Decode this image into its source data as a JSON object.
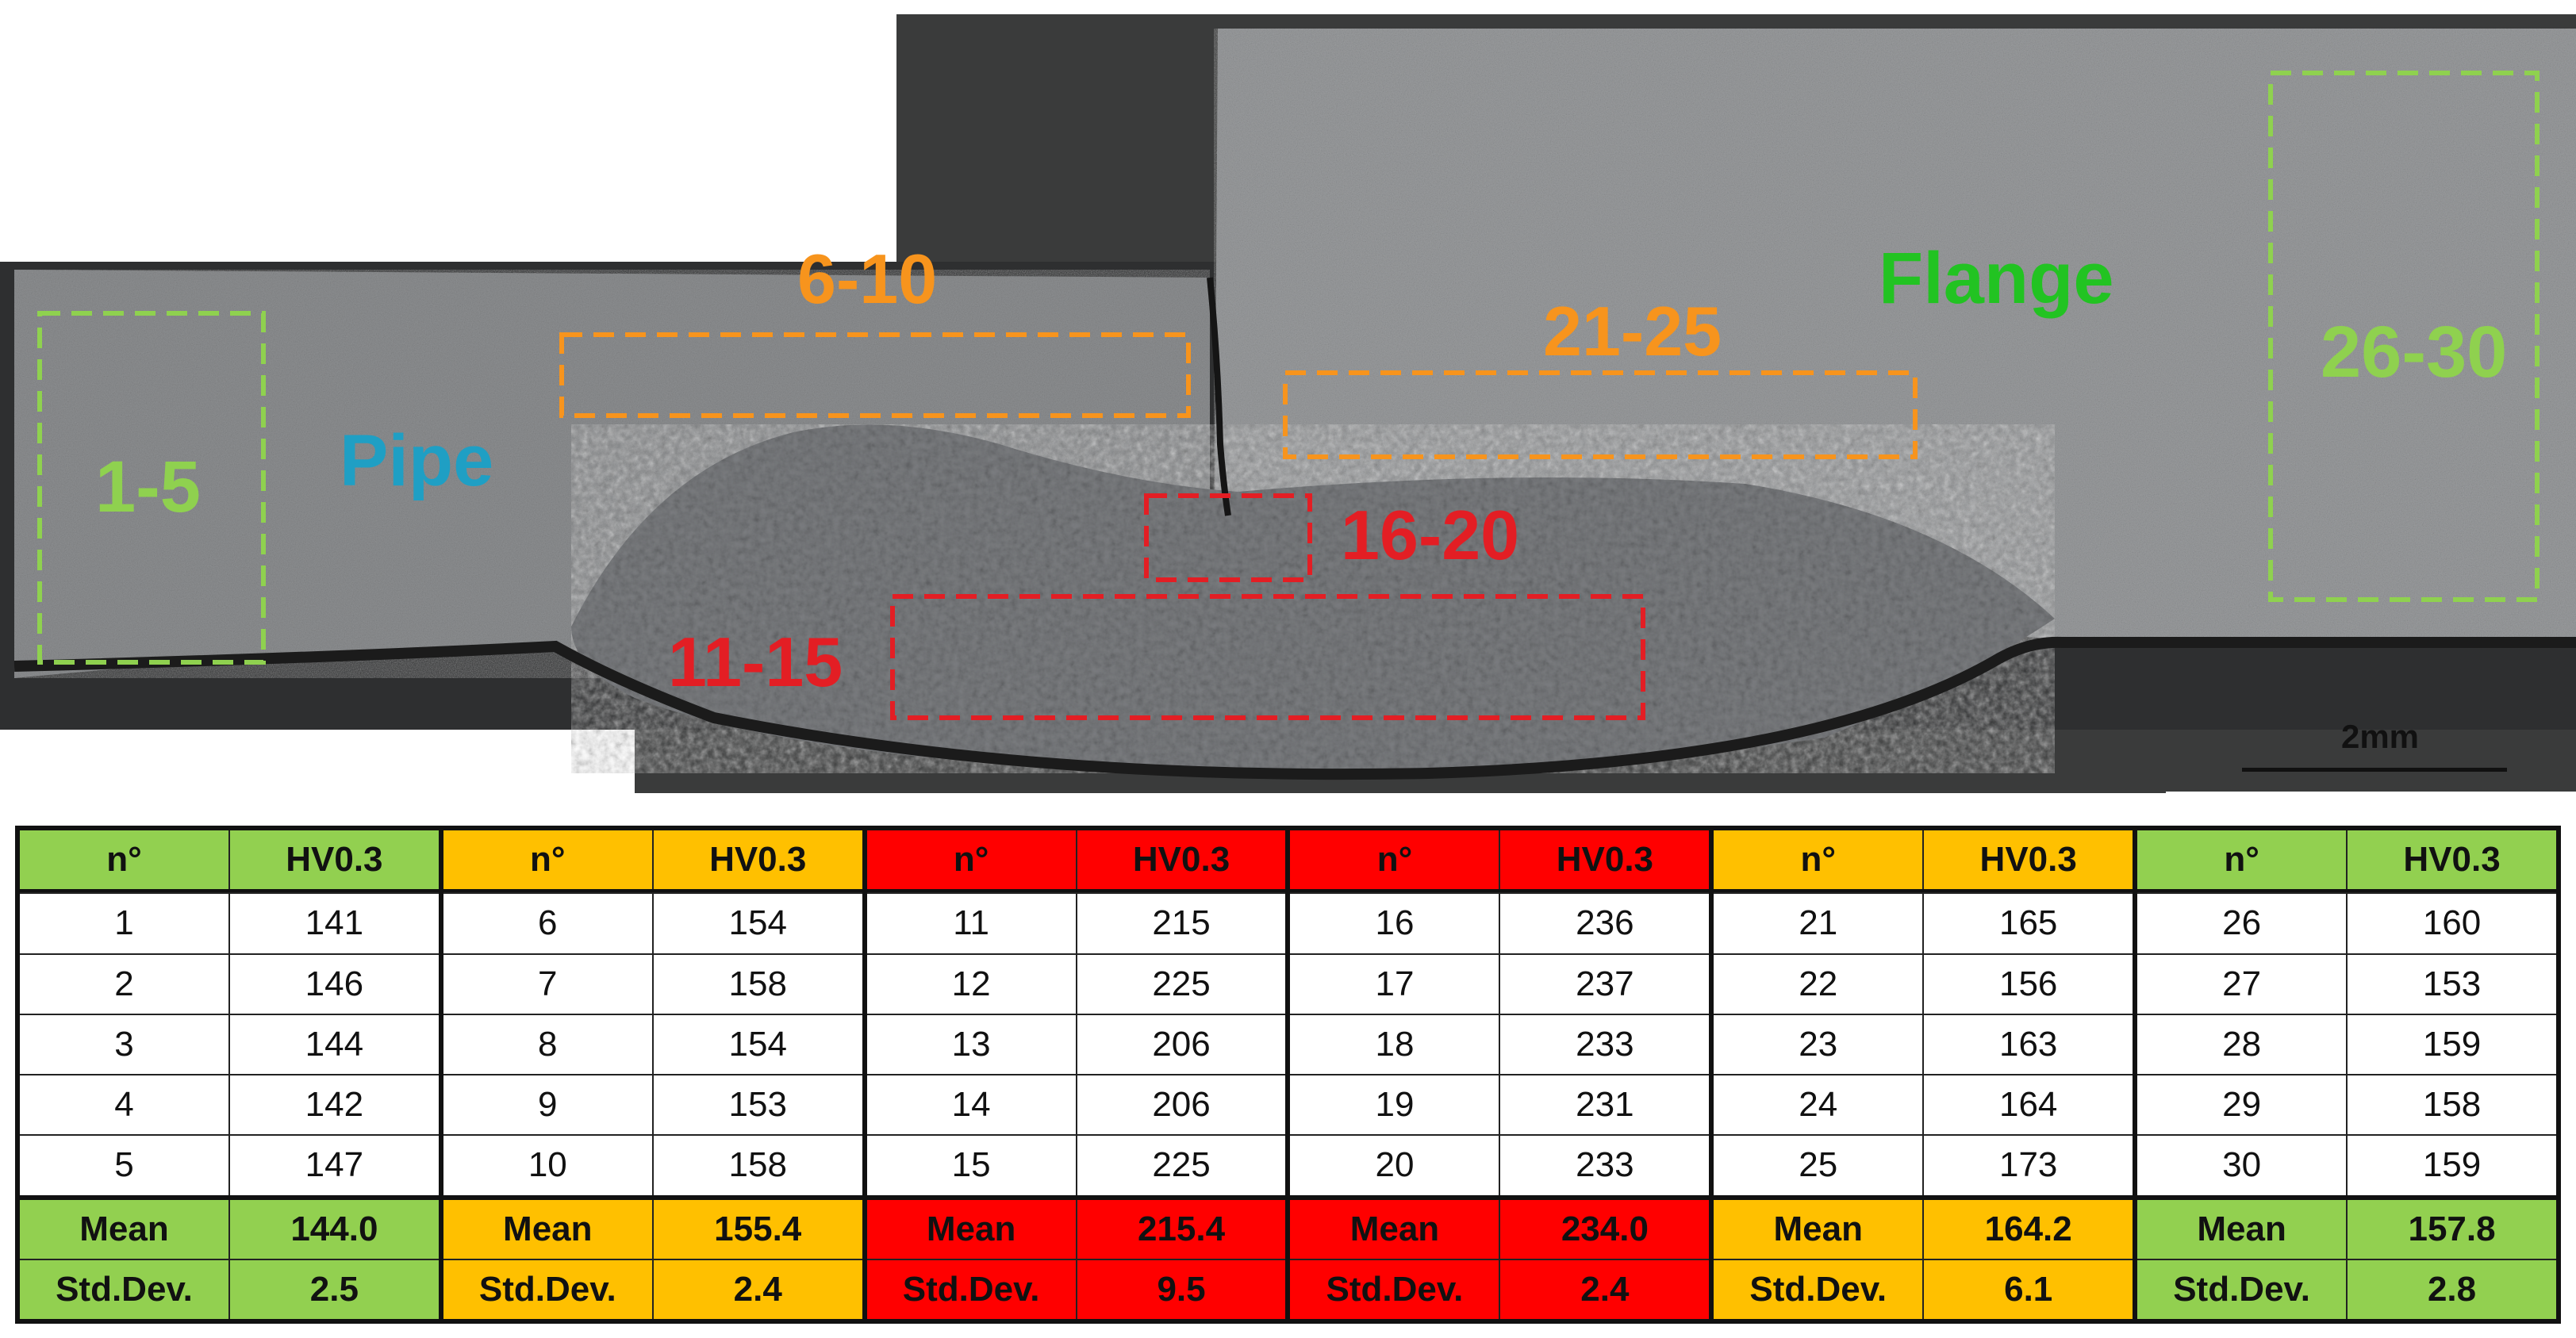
{
  "micrograph": {
    "zone_labels": {
      "pipe": "Pipe",
      "flange": "Flange",
      "box_1_5": "1-5",
      "box_6_10": "6-10",
      "box_11_15": "11-15",
      "box_16_20": "16-20",
      "box_21_25": "21-25",
      "box_26_30": "26-30"
    },
    "scale_bar": "2mm"
  },
  "table": {
    "zones": [
      {
        "color": "#92d050",
        "header": [
          "n°",
          "HV0.3"
        ],
        "rows": [
          [
            "1",
            "141"
          ],
          [
            "2",
            "146"
          ],
          [
            "3",
            "144"
          ],
          [
            "4",
            "142"
          ],
          [
            "5",
            "147"
          ]
        ],
        "mean": [
          "Mean",
          "144.0"
        ],
        "std": [
          "Std.Dev.",
          "2.5"
        ]
      },
      {
        "color": "#ffc000",
        "header": [
          "n°",
          "HV0.3"
        ],
        "rows": [
          [
            "6",
            "154"
          ],
          [
            "7",
            "158"
          ],
          [
            "8",
            "154"
          ],
          [
            "9",
            "153"
          ],
          [
            "10",
            "158"
          ]
        ],
        "mean": [
          "Mean",
          "155.4"
        ],
        "std": [
          "Std.Dev.",
          "2.4"
        ]
      },
      {
        "color": "#ff0000",
        "header": [
          "n°",
          "HV0.3"
        ],
        "rows": [
          [
            "11",
            "215"
          ],
          [
            "12",
            "225"
          ],
          [
            "13",
            "206"
          ],
          [
            "14",
            "206"
          ],
          [
            "15",
            "225"
          ]
        ],
        "mean": [
          "Mean",
          "215.4"
        ],
        "std": [
          "Std.Dev.",
          "9.5"
        ]
      },
      {
        "color": "#ff0000",
        "header": [
          "n°",
          "HV0.3"
        ],
        "rows": [
          [
            "16",
            "236"
          ],
          [
            "17",
            "237"
          ],
          [
            "18",
            "233"
          ],
          [
            "19",
            "231"
          ],
          [
            "20",
            "233"
          ]
        ],
        "mean": [
          "Mean",
          "234.0"
        ],
        "std": [
          "Std.Dev.",
          "2.4"
        ]
      },
      {
        "color": "#ffc000",
        "header": [
          "n°",
          "HV0.3"
        ],
        "rows": [
          [
            "21",
            "165"
          ],
          [
            "22",
            "156"
          ],
          [
            "23",
            "163"
          ],
          [
            "24",
            "164"
          ],
          [
            "25",
            "173"
          ]
        ],
        "mean": [
          "Mean",
          "164.2"
        ],
        "std": [
          "Std.Dev.",
          "6.1"
        ]
      },
      {
        "color": "#92d050",
        "header": [
          "n°",
          "HV0.3"
        ],
        "rows": [
          [
            "26",
            "160"
          ],
          [
            "27",
            "153"
          ],
          [
            "28",
            "159"
          ],
          [
            "29",
            "158"
          ],
          [
            "30",
            "159"
          ]
        ],
        "mean": [
          "Mean",
          "157.8"
        ],
        "std": [
          "Std.Dev.",
          "2.8"
        ]
      }
    ]
  },
  "colors": {
    "green_zone": "#92d050",
    "orange_zone": "#ffc000",
    "red_zone": "#ff0000",
    "pipe_label": "#1f9fc4",
    "flange_label": "#22c322",
    "box_green": "#8fd14f",
    "box_orange": "#f7941d",
    "box_red": "#e31e24"
  }
}
